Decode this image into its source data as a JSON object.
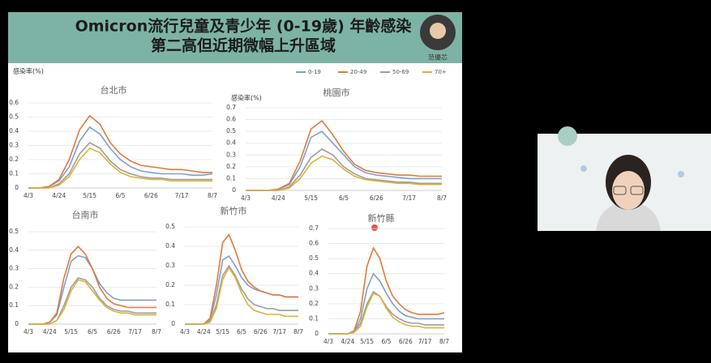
{
  "slide": {
    "title_lines": [
      "Omicron流行兒童及青少年 (0-19歲) 年齡感染",
      "第二高但近期微幅上升區域"
    ],
    "presenter": "范優芯",
    "y_label": "感染率(%)",
    "legend": [
      {
        "name": "0-19",
        "color": "#7f9fce"
      },
      {
        "name": "20-49",
        "color": "#e07b3a"
      },
      {
        "name": "50-69",
        "color": "#9e9e9e"
      },
      {
        "name": "70+",
        "color": "#d9b43a"
      }
    ]
  },
  "chart_data": [
    {
      "type": "line",
      "title": "台北市",
      "categories": [
        "4/3",
        null,
        null,
        "4/24",
        null,
        null,
        "5/15",
        null,
        null,
        "6/5",
        null,
        null,
        "6/26",
        null,
        null,
        "7/17",
        null,
        null,
        "8/7"
      ],
      "ylim": [
        0,
        0.6
      ],
      "yticks": [
        0,
        0.1,
        0.2,
        0.3,
        0.4,
        0.5,
        0.6
      ],
      "series": [
        {
          "values": [
            0,
            0,
            0.01,
            0.05,
            0.15,
            0.33,
            0.43,
            0.38,
            0.28,
            0.2,
            0.15,
            0.12,
            0.11,
            0.1,
            0.1,
            0.1,
            0.09,
            0.09,
            0.1
          ]
        },
        {
          "values": [
            0,
            0,
            0.01,
            0.06,
            0.2,
            0.41,
            0.51,
            0.45,
            0.32,
            0.24,
            0.19,
            0.16,
            0.15,
            0.14,
            0.13,
            0.13,
            0.12,
            0.11,
            0.11
          ]
        },
        {
          "values": [
            0,
            0,
            0,
            0.03,
            0.1,
            0.24,
            0.32,
            0.28,
            0.19,
            0.13,
            0.1,
            0.08,
            0.07,
            0.07,
            0.06,
            0.06,
            0.06,
            0.06,
            0.06
          ]
        },
        {
          "values": [
            0,
            0,
            0,
            0.02,
            0.08,
            0.2,
            0.28,
            0.25,
            0.17,
            0.11,
            0.08,
            0.07,
            0.06,
            0.06,
            0.05,
            0.05,
            0.05,
            0.05,
            0.05
          ]
        }
      ]
    },
    {
      "type": "line",
      "title": "桃園市",
      "y_label": "感染率(%)",
      "categories": [
        "4/3",
        null,
        null,
        "4/24",
        null,
        null,
        "5/15",
        null,
        null,
        "6/5",
        null,
        null,
        "6/26",
        null,
        null,
        "7/17",
        null,
        null,
        "8/7"
      ],
      "ylim": [
        0,
        0.7
      ],
      "yticks": [
        0,
        0.1,
        0.2,
        0.3,
        0.4,
        0.5,
        0.6,
        0.7
      ],
      "series": [
        {
          "values": [
            0,
            0,
            0,
            0.01,
            0.05,
            0.2,
            0.45,
            0.5,
            0.4,
            0.3,
            0.2,
            0.15,
            0.13,
            0.12,
            0.11,
            0.1,
            0.1,
            0.1,
            0.1
          ]
        },
        {
          "values": [
            0,
            0,
            0,
            0.01,
            0.06,
            0.25,
            0.52,
            0.59,
            0.47,
            0.33,
            0.22,
            0.17,
            0.15,
            0.14,
            0.13,
            0.13,
            0.12,
            0.12,
            0.12
          ]
        },
        {
          "values": [
            0,
            0,
            0,
            0,
            0.03,
            0.13,
            0.28,
            0.35,
            0.3,
            0.2,
            0.14,
            0.1,
            0.09,
            0.08,
            0.07,
            0.07,
            0.06,
            0.06,
            0.06
          ]
        },
        {
          "values": [
            0,
            0,
            0,
            0,
            0.02,
            0.1,
            0.23,
            0.29,
            0.26,
            0.18,
            0.12,
            0.09,
            0.08,
            0.07,
            0.06,
            0.06,
            0.05,
            0.05,
            0.05
          ]
        }
      ]
    },
    {
      "type": "line",
      "title": "台南市",
      "categories": [
        "4/3",
        null,
        null,
        "4/24",
        null,
        null,
        "5/15",
        null,
        null,
        "6/5",
        null,
        null,
        "6/26",
        null,
        null,
        "7/17",
        null,
        null,
        "8/7"
      ],
      "ylim": [
        0,
        0.5
      ],
      "yticks": [
        0,
        0.1,
        0.2,
        0.3,
        0.4,
        0.5
      ],
      "series": [
        {
          "values": [
            0,
            0,
            0,
            0.01,
            0.05,
            0.2,
            0.34,
            0.37,
            0.36,
            0.3,
            0.22,
            0.17,
            0.14,
            0.13,
            0.13,
            0.13,
            0.13,
            0.13,
            0.13
          ]
        },
        {
          "values": [
            0,
            0,
            0,
            0.01,
            0.06,
            0.25,
            0.38,
            0.42,
            0.38,
            0.3,
            0.2,
            0.14,
            0.11,
            0.1,
            0.09,
            0.09,
            0.09,
            0.09,
            0.09
          ]
        },
        {
          "values": [
            0,
            0,
            0,
            0,
            0.02,
            0.1,
            0.2,
            0.25,
            0.24,
            0.2,
            0.14,
            0.1,
            0.08,
            0.07,
            0.07,
            0.06,
            0.06,
            0.06,
            0.06
          ]
        },
        {
          "values": [
            0,
            0,
            0,
            0,
            0.02,
            0.08,
            0.18,
            0.24,
            0.23,
            0.18,
            0.13,
            0.09,
            0.07,
            0.06,
            0.06,
            0.05,
            0.05,
            0.05,
            0.05
          ]
        }
      ]
    },
    {
      "type": "line",
      "title": "新竹市",
      "categories": [
        "4/3",
        null,
        null,
        "4/24",
        null,
        null,
        "5/15",
        null,
        null,
        "6/5",
        null,
        null,
        "6/26",
        null,
        null,
        "7/17",
        null,
        null,
        "8/7"
      ],
      "ylim": [
        0,
        0.5
      ],
      "yticks": [
        0,
        0.1,
        0.2,
        0.3,
        0.4,
        0.5
      ],
      "series": [
        {
          "values": [
            0,
            0,
            0,
            0,
            0.02,
            0.15,
            0.33,
            0.35,
            0.3,
            0.24,
            0.2,
            0.18,
            0.17,
            0.16,
            0.15,
            0.15,
            0.14,
            0.14,
            0.14
          ]
        },
        {
          "values": [
            0,
            0,
            0,
            0,
            0.03,
            0.2,
            0.42,
            0.46,
            0.38,
            0.28,
            0.22,
            0.19,
            0.17,
            0.16,
            0.15,
            0.15,
            0.14,
            0.14,
            0.14
          ]
        },
        {
          "values": [
            0,
            0,
            0,
            0,
            0.01,
            0.1,
            0.25,
            0.3,
            0.25,
            0.18,
            0.13,
            0.1,
            0.09,
            0.08,
            0.08,
            0.07,
            0.07,
            0.07,
            0.07
          ]
        },
        {
          "values": [
            0,
            0,
            0,
            0,
            0.01,
            0.08,
            0.23,
            0.29,
            0.24,
            0.16,
            0.1,
            0.07,
            0.06,
            0.05,
            0.05,
            0.05,
            0.04,
            0.04,
            0.04
          ]
        }
      ]
    },
    {
      "type": "line",
      "title": "新竹縣",
      "categories": [
        "4/3",
        null,
        null,
        "4/24",
        null,
        null,
        "5/15",
        null,
        null,
        "6/5",
        null,
        null,
        "6/26",
        null,
        null,
        "7/17",
        null,
        null,
        "8/7"
      ],
      "ylim": [
        0,
        0.7
      ],
      "yticks": [
        0,
        0.1,
        0.2,
        0.3,
        0.4,
        0.5,
        0.6,
        0.7
      ],
      "series": [
        {
          "values": [
            0,
            0,
            0,
            0,
            0.01,
            0.1,
            0.3,
            0.4,
            0.35,
            0.27,
            0.2,
            0.15,
            0.12,
            0.11,
            0.1,
            0.1,
            0.1,
            0.1,
            0.1
          ]
        },
        {
          "values": [
            0,
            0,
            0,
            0,
            0.02,
            0.15,
            0.45,
            0.57,
            0.5,
            0.35,
            0.25,
            0.2,
            0.16,
            0.14,
            0.13,
            0.13,
            0.13,
            0.13,
            0.14
          ]
        },
        {
          "values": [
            0,
            0,
            0,
            0,
            0.01,
            0.07,
            0.2,
            0.28,
            0.25,
            0.18,
            0.13,
            0.1,
            0.08,
            0.07,
            0.07,
            0.06,
            0.06,
            0.06,
            0.06
          ]
        },
        {
          "values": [
            0,
            0,
            0,
            0,
            0.01,
            0.05,
            0.18,
            0.27,
            0.25,
            0.17,
            0.11,
            0.08,
            0.06,
            0.05,
            0.05,
            0.04,
            0.04,
            0.04,
            0.04
          ]
        }
      ]
    }
  ]
}
